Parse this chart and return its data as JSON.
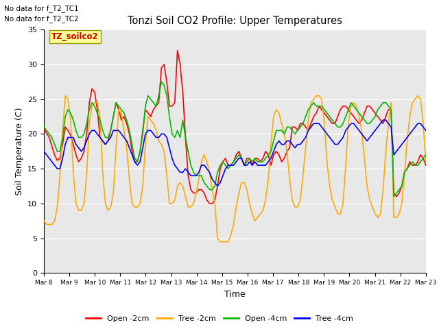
{
  "title": "Tonzi Soil CO2 Profile: Upper Temperatures",
  "ylabel": "Soil Temperature (C)",
  "xlabel": "Time",
  "top_left_text1": "No data for f_T2_TC1",
  "top_left_text2": "No data for f_T2_TC2",
  "box_label": "TZ_soilco2",
  "ylim": [
    0,
    35
  ],
  "yticks": [
    0,
    5,
    10,
    15,
    20,
    25,
    30,
    35
  ],
  "xtick_labels": [
    "Mar 8",
    "Mar 9",
    "Mar 10",
    "Mar 11",
    "Mar 12",
    "Mar 13",
    "Mar 14",
    "Mar 15",
    "Mar 16",
    "Mar 17",
    "Mar 18",
    "Mar 19",
    "Mar 20",
    "Mar 21",
    "Mar 22",
    "Mar 23"
  ],
  "legend_entries": [
    "Open -2cm",
    "Tree -2cm",
    "Open -4cm",
    "Tree -4cm"
  ],
  "legend_colors": [
    "#ff0000",
    "#ffaa00",
    "#00bb00",
    "#0000ff"
  ],
  "bg_color": "#e8e8e8",
  "grid_color": "#ffffff",
  "open2cm": [
    20.7,
    20.1,
    19.5,
    18.2,
    17.0,
    16.2,
    16.5,
    18.5,
    21.0,
    20.5,
    19.8,
    18.5,
    17.0,
    16.0,
    16.5,
    17.5,
    20.0,
    24.5,
    26.5,
    26.0,
    23.5,
    19.5,
    19.0,
    18.5,
    19.0,
    20.5,
    22.5,
    24.5,
    23.5,
    22.0,
    22.5,
    21.5,
    20.0,
    17.5,
    16.0,
    16.0,
    17.5,
    20.5,
    23.5,
    23.0,
    22.5,
    23.5,
    24.0,
    24.5,
    29.5,
    30.0,
    27.5,
    24.0,
    24.0,
    24.5,
    32.0,
    30.0,
    26.0,
    19.5,
    14.0,
    12.0,
    11.5,
    11.5,
    12.0,
    12.0,
    11.5,
    10.5,
    10.0,
    10.0,
    10.5,
    12.5,
    15.0,
    16.0,
    16.5,
    15.5,
    15.5,
    16.0,
    17.0,
    17.5,
    16.5,
    15.5,
    16.5,
    16.5,
    15.5,
    16.5,
    16.5,
    16.0,
    16.5,
    17.5,
    17.0,
    15.5,
    17.0,
    17.5,
    17.0,
    16.0,
    16.5,
    17.5,
    18.0,
    21.0,
    21.0,
    20.5,
    21.5,
    21.5,
    21.0,
    20.5,
    21.5,
    22.5,
    23.0,
    24.0,
    23.5,
    23.0,
    22.5,
    22.0,
    21.5,
    21.5,
    22.5,
    23.5,
    24.0,
    24.0,
    23.5,
    23.0,
    22.5,
    22.0,
    21.5,
    22.0,
    23.0,
    24.0,
    24.0,
    23.5,
    23.0,
    22.5,
    22.0,
    21.5,
    22.5,
    23.5,
    23.5,
    11.5,
    11.0,
    11.5,
    12.5,
    14.5,
    15.0,
    16.0,
    15.5,
    15.5,
    16.0,
    17.0,
    16.5,
    15.5
  ],
  "tree2cm": [
    7.5,
    7.0,
    7.0,
    7.0,
    7.5,
    9.5,
    14.0,
    20.5,
    25.5,
    25.0,
    22.0,
    14.5,
    10.0,
    9.0,
    9.0,
    10.0,
    14.0,
    21.5,
    24.0,
    24.5,
    24.5,
    22.5,
    14.5,
    10.0,
    9.0,
    9.5,
    11.5,
    18.0,
    23.5,
    23.0,
    20.5,
    18.0,
    13.5,
    10.0,
    9.5,
    9.5,
    10.0,
    12.5,
    18.5,
    22.5,
    22.0,
    21.5,
    20.5,
    19.0,
    18.5,
    17.5,
    14.0,
    10.0,
    10.0,
    10.5,
    12.5,
    13.0,
    12.5,
    11.0,
    9.5,
    9.5,
    10.0,
    11.5,
    13.5,
    16.0,
    17.0,
    16.0,
    14.5,
    12.0,
    10.0,
    5.0,
    4.5,
    4.5,
    4.5,
    4.5,
    5.5,
    7.0,
    9.5,
    11.5,
    13.0,
    13.0,
    12.0,
    10.0,
    8.5,
    7.5,
    8.0,
    8.5,
    9.0,
    10.5,
    13.5,
    18.5,
    22.5,
    23.5,
    23.0,
    21.5,
    20.0,
    17.5,
    13.5,
    10.5,
    9.5,
    9.5,
    10.5,
    14.0,
    18.0,
    22.0,
    24.5,
    25.0,
    25.5,
    25.5,
    25.0,
    21.5,
    16.0,
    12.5,
    10.5,
    9.5,
    8.5,
    8.5,
    10.0,
    15.5,
    21.5,
    24.0,
    24.5,
    24.0,
    22.5,
    20.5,
    16.5,
    12.5,
    10.5,
    9.5,
    8.5,
    8.0,
    8.5,
    12.0,
    17.5,
    21.5,
    24.5,
    8.0,
    8.0,
    8.5,
    10.0,
    14.0,
    19.0,
    22.5,
    24.5,
    25.0,
    25.5,
    25.0,
    21.5,
    16.0
  ],
  "open4cm": [
    21.0,
    20.5,
    20.0,
    19.5,
    18.5,
    17.5,
    17.5,
    19.5,
    22.5,
    23.5,
    23.0,
    22.0,
    20.5,
    19.5,
    19.5,
    20.0,
    21.5,
    23.5,
    24.5,
    24.0,
    23.0,
    22.0,
    20.5,
    19.5,
    19.5,
    20.5,
    22.5,
    24.5,
    24.0,
    23.5,
    23.0,
    22.0,
    20.5,
    18.5,
    16.5,
    16.0,
    17.5,
    20.0,
    24.0,
    25.5,
    25.0,
    24.5,
    24.0,
    25.5,
    27.5,
    27.0,
    25.5,
    22.5,
    20.0,
    19.5,
    20.5,
    19.5,
    22.0,
    19.5,
    17.5,
    15.5,
    14.5,
    14.0,
    14.0,
    14.0,
    13.0,
    12.5,
    12.0,
    12.0,
    12.5,
    14.5,
    15.5,
    16.0,
    15.5,
    15.0,
    15.5,
    16.0,
    16.5,
    17.0,
    16.5,
    15.5,
    16.0,
    16.5,
    16.0,
    16.5,
    16.0,
    16.0,
    16.0,
    16.5,
    17.0,
    17.5,
    19.0,
    20.5,
    20.5,
    20.5,
    20.0,
    21.0,
    21.0,
    20.5,
    20.0,
    20.5,
    21.0,
    21.5,
    22.5,
    23.5,
    24.0,
    24.5,
    24.0,
    24.0,
    24.0,
    23.5,
    23.0,
    22.5,
    22.0,
    21.5,
    21.0,
    21.0,
    21.5,
    22.5,
    23.5,
    24.5,
    24.0,
    23.5,
    23.0,
    22.5,
    22.0,
    21.5,
    21.5,
    22.0,
    22.5,
    23.5,
    24.0,
    24.5,
    24.5,
    24.0,
    23.5,
    11.0,
    11.5,
    12.0,
    12.5,
    14.5,
    15.0,
    15.5,
    16.0,
    15.5,
    15.5,
    16.0,
    16.5,
    17.0
  ],
  "tree4cm": [
    17.5,
    17.0,
    16.5,
    16.0,
    15.5,
    15.0,
    15.0,
    16.5,
    18.5,
    19.5,
    19.5,
    19.5,
    18.5,
    18.0,
    17.5,
    18.0,
    19.0,
    20.0,
    20.5,
    20.5,
    20.0,
    19.5,
    19.0,
    18.5,
    19.0,
    19.5,
    20.5,
    20.5,
    20.5,
    20.0,
    19.5,
    19.0,
    18.0,
    17.0,
    16.0,
    15.5,
    16.0,
    18.0,
    20.0,
    20.5,
    20.5,
    20.0,
    19.5,
    19.5,
    20.0,
    20.0,
    19.5,
    18.0,
    16.5,
    15.5,
    15.0,
    14.5,
    14.5,
    15.0,
    14.5,
    14.0,
    14.0,
    14.0,
    14.5,
    15.5,
    15.5,
    15.0,
    14.5,
    13.5,
    13.0,
    12.5,
    13.0,
    14.0,
    15.0,
    15.5,
    15.5,
    15.5,
    16.0,
    16.5,
    16.5,
    15.5,
    15.5,
    16.0,
    15.5,
    16.0,
    15.5,
    15.5,
    15.5,
    15.5,
    16.0,
    16.5,
    17.5,
    18.5,
    19.0,
    18.5,
    18.5,
    19.0,
    19.0,
    18.5,
    18.0,
    18.5,
    18.5,
    19.0,
    19.5,
    20.5,
    21.0,
    21.5,
    21.5,
    21.5,
    21.0,
    20.5,
    20.0,
    19.5,
    19.0,
    18.5,
    18.5,
    19.0,
    19.5,
    20.5,
    21.0,
    21.5,
    21.5,
    21.0,
    20.5,
    20.0,
    19.5,
    19.0,
    19.5,
    20.0,
    20.5,
    21.0,
    21.5,
    22.0,
    22.0,
    21.5,
    21.0,
    17.0,
    17.5,
    18.0,
    18.5,
    19.0,
    19.5,
    20.0,
    20.5,
    21.0,
    21.5,
    21.5,
    21.0,
    20.5
  ]
}
